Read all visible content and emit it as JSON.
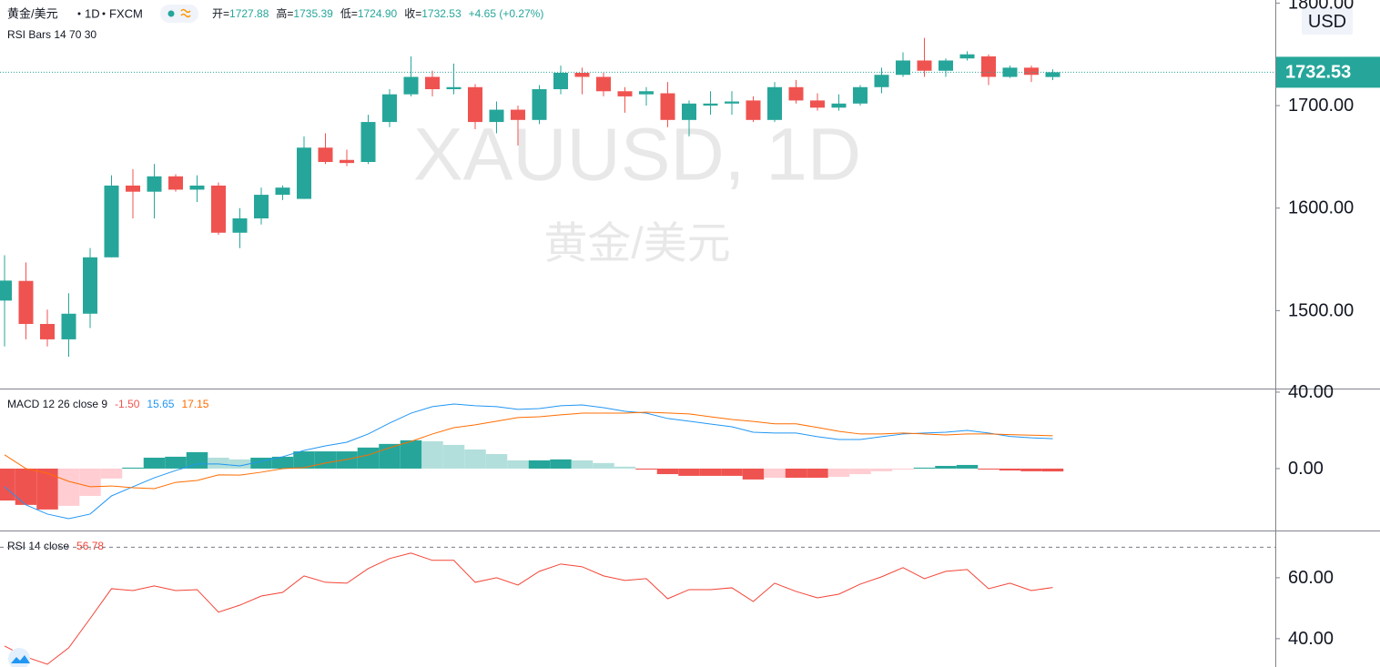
{
  "chart_data": [
    {
      "type": "candlestick",
      "title": "黄金/美元",
      "interval": "1D",
      "source": "FXCM",
      "stats": [
        {
          "label": "开=",
          "value": "1727.88"
        },
        {
          "label": "高=",
          "value": "1735.39"
        },
        {
          "label": "低=",
          "value": "1724.90"
        },
        {
          "label": "收=",
          "value": "1732.53"
        }
      ],
      "change": "+4.65 (+0.27%)",
      "indicator": "RSI Bars 14 70 30",
      "watermark": "XAUUSD, 1D",
      "watermark_subtitle": "黄金/美元",
      "currency": "USD",
      "open": [
        1509.8,
        1529,
        1487,
        1472,
        1497,
        1552,
        1622,
        1616,
        1631,
        1618,
        1622,
        1576,
        1590,
        1613,
        1609,
        1659,
        1647,
        1645,
        1684,
        1711,
        1728,
        1716,
        1718,
        1684,
        1696,
        1686,
        1716,
        1732,
        1728,
        1714,
        1711,
        1712,
        1686,
        1700,
        1702,
        1705,
        1686,
        1718,
        1705,
        1698,
        1702,
        1718,
        1730,
        1744,
        1734,
        1746,
        1748,
        1728,
        1737,
        1727.88
      ],
      "high": [
        1554,
        1547,
        1501,
        1517,
        1561,
        1632,
        1638,
        1643,
        1633,
        1632,
        1625,
        1600,
        1620,
        1622,
        1670,
        1673,
        1657,
        1691,
        1716,
        1748,
        1734,
        1741,
        1721,
        1704,
        1700,
        1720,
        1739,
        1737,
        1732,
        1718,
        1718,
        1723,
        1705,
        1714,
        1714,
        1709,
        1723,
        1725,
        1712,
        1711,
        1720,
        1737,
        1752,
        1766,
        1746,
        1753,
        1750,
        1739,
        1739,
        1735.39
      ],
      "low": [
        1465,
        1472,
        1465,
        1455,
        1483,
        1552,
        1590,
        1590,
        1616,
        1606,
        1574,
        1561,
        1584,
        1608,
        1609,
        1643,
        1641,
        1643,
        1679,
        1709,
        1709,
        1711,
        1677,
        1673,
        1661,
        1682,
        1711,
        1711,
        1709,
        1693,
        1700,
        1679,
        1670,
        1691,
        1691,
        1684,
        1684,
        1702,
        1695,
        1695,
        1700,
        1712,
        1728,
        1728,
        1728,
        1744,
        1720,
        1727,
        1723,
        1724.9
      ],
      "close": [
        1529.3,
        1487,
        1472,
        1497,
        1552,
        1622,
        1616,
        1631,
        1618,
        1622,
        1576,
        1590,
        1613,
        1620,
        1659,
        1645,
        1644,
        1684,
        1711,
        1728,
        1716,
        1718,
        1684,
        1696,
        1686,
        1716,
        1732,
        1728,
        1714,
        1709,
        1714,
        1686,
        1702,
        1702,
        1704,
        1686,
        1718,
        1705,
        1698,
        1702,
        1718,
        1730,
        1744,
        1734,
        1744,
        1750,
        1728,
        1737,
        1730,
        1732.53
      ],
      "colors": {
        "up": "#26a69a",
        "down": "#ef5350"
      },
      "ylim": [
        1424,
        1803
      ],
      "yticks": [
        {
          "value": 1500,
          "label": "1500.00"
        },
        {
          "value": 1600,
          "label": "1600.00"
        },
        {
          "value": 1700,
          "label": "1700.00"
        },
        {
          "value": 1800,
          "label": "1800.00"
        }
      ],
      "grid": false
    },
    {
      "type": "macd",
      "title": "MACD 12 26 close 9",
      "histogram": {
        "label": "-1.50",
        "values": [
          -16.7,
          -19,
          -21.4,
          -19.5,
          -14.3,
          -5.2,
          0.5,
          5.7,
          6.2,
          8.6,
          5.7,
          4.8,
          5.7,
          6.2,
          9,
          9,
          9,
          11,
          12.9,
          14.8,
          14.3,
          12.4,
          10,
          7.6,
          4.3,
          4.3,
          4.8,
          4.3,
          2.9,
          1,
          -0.5,
          -2.9,
          -3.8,
          -3.8,
          -3.8,
          -5.7,
          -4.8,
          -4.8,
          -4.8,
          -4.3,
          -2.9,
          -1.4,
          -0.5,
          0.5,
          1.4,
          1.9,
          -0.2,
          -1,
          -1.4,
          -1.5
        ],
        "colors": {
          "up_strong": "#26a69a",
          "up_weak": "#b2dfdb",
          "down_strong": "#ef5350",
          "down_weak": "#ffcdd2"
        }
      },
      "series": [
        {
          "label": "15.65",
          "color": "#2196f3",
          "values": [
            -9.5,
            -19,
            -23.8,
            -26.2,
            -23.8,
            -14.3,
            -9.5,
            -4.8,
            -1,
            2.4,
            2.4,
            1.4,
            3.8,
            6.2,
            9.5,
            11.9,
            13.8,
            18.1,
            23.8,
            29,
            32.4,
            33.8,
            32.9,
            32.4,
            31,
            31.4,
            32.9,
            33.3,
            31.9,
            30,
            29,
            26.2,
            24.8,
            23.3,
            21.9,
            19,
            18.6,
            18.6,
            16.7,
            15.2,
            15.2,
            16.7,
            18.1,
            18.6,
            19,
            20,
            18.6,
            16.8,
            16.1,
            15.65
          ]
        },
        {
          "label": "17.15",
          "color": "#ff6d00",
          "values": [
            7.2,
            0,
            -2.4,
            -6.7,
            -9.5,
            -9.1,
            -10,
            -10.5,
            -7.2,
            -6.2,
            -3.3,
            -3.4,
            -1.9,
            0,
            0.5,
            2.9,
            4.8,
            7.1,
            10.9,
            14.2,
            18.1,
            21.4,
            22.9,
            24.8,
            26.7,
            27.1,
            28.1,
            29,
            29,
            29,
            29.5,
            29.1,
            28.6,
            27.1,
            25.7,
            24.7,
            23.4,
            23.4,
            21.5,
            19.5,
            18.1,
            18.1,
            18.6,
            18.1,
            17.6,
            18.1,
            18.1,
            17.8,
            17.5,
            17.15
          ]
        }
      ],
      "ylim": [
        -32.4,
        41.4
      ],
      "yticks": [
        {
          "value": 0,
          "label": "0.00"
        },
        {
          "value": 40,
          "label": "40.00"
        }
      ]
    },
    {
      "type": "rsi",
      "title": "RSI 14 close",
      "label": "56.78",
      "color": "#f44336",
      "values": [
        37.6,
        34,
        31.6,
        37,
        46.6,
        56.4,
        55.8,
        57.3,
        55.8,
        56.1,
        48.7,
        51,
        54,
        55.2,
        60.6,
        58.5,
        58.2,
        63,
        66.3,
        68.1,
        65.7,
        65.7,
        58.5,
        60,
        57.6,
        62.1,
        64.5,
        63.6,
        60.6,
        59.1,
        59.7,
        53.1,
        56.1,
        56.1,
        56.7,
        52.2,
        58.2,
        55.5,
        53.4,
        54.6,
        57.9,
        60.3,
        63.3,
        59.7,
        62.1,
        62.7,
        56.4,
        58.2,
        55.8,
        56.78
      ],
      "band": 70,
      "ylim": [
        30.7,
        75.2
      ],
      "yticks": [
        {
          "value": 40,
          "label": "40.00"
        },
        {
          "value": 60,
          "label": "60.00"
        }
      ]
    }
  ]
}
